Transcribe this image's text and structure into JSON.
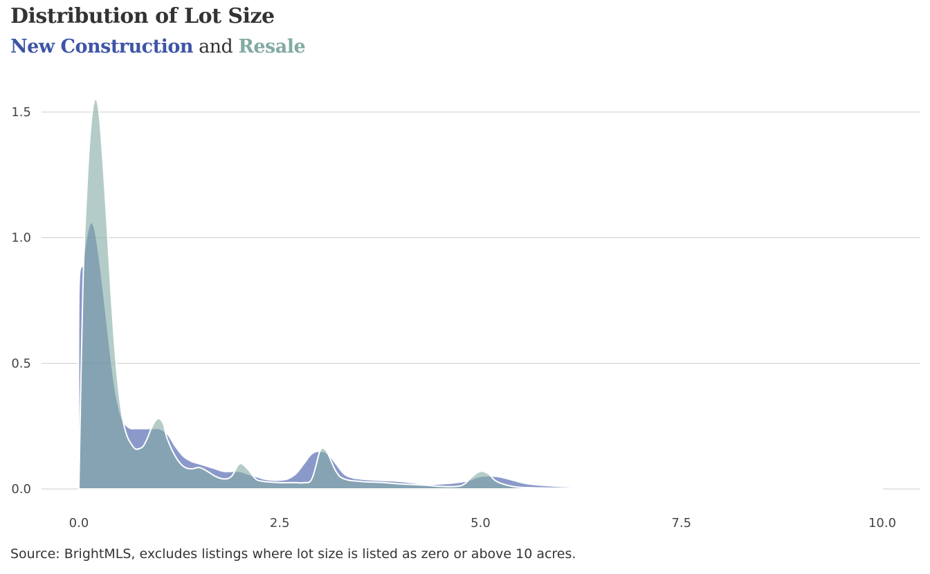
{
  "title": "Distribution of Lot Size",
  "subtitle": {
    "series1": "New Construction",
    "joiner": "and",
    "series2": "Resale"
  },
  "source": "Source: BrightMLS, excludes listings where lot size is listed as zero or above 10 acres.",
  "colors": {
    "new_construction": "#3e55a6",
    "resale": "#82aaa3",
    "grid": "#cccccc",
    "text": "#333333"
  },
  "chart_data": {
    "type": "area",
    "xlim": [
      0,
      10
    ],
    "ylim": [
      0,
      1.6
    ],
    "x_ticks": [
      "0.0",
      "2.5",
      "5.0",
      "7.5",
      "10.0"
    ],
    "y_ticks": [
      "0.0",
      "0.5",
      "1.0",
      "1.5"
    ],
    "grid": "horizontal",
    "series": [
      {
        "name": "New Construction",
        "x": [
          0.0,
          0.0,
          0.05,
          0.1,
          0.15,
          0.2,
          0.25,
          0.3,
          0.35,
          0.4,
          0.45,
          0.5,
          0.55,
          0.6,
          0.65,
          0.7,
          0.8,
          0.9,
          1.0,
          1.1,
          1.2,
          1.3,
          1.4,
          1.5,
          1.6,
          1.7,
          1.8,
          1.9,
          2.0,
          2.1,
          2.2,
          2.3,
          2.4,
          2.5,
          2.6,
          2.7,
          2.8,
          2.9,
          3.0,
          3.1,
          3.2,
          3.3,
          3.4,
          3.5,
          3.7,
          4.0,
          4.3,
          4.5,
          4.8,
          5.0,
          5.2,
          5.4,
          5.6,
          6.0,
          6.5,
          7.0,
          7.5,
          8.0,
          8.5,
          9.0,
          9.5,
          10.0
        ],
        "y": [
          0.0,
          0.77,
          0.9,
          1.01,
          1.06,
          1.03,
          0.93,
          0.8,
          0.66,
          0.52,
          0.4,
          0.32,
          0.27,
          0.25,
          0.24,
          0.24,
          0.24,
          0.24,
          0.24,
          0.22,
          0.17,
          0.13,
          0.11,
          0.1,
          0.09,
          0.08,
          0.07,
          0.07,
          0.07,
          0.06,
          0.05,
          0.04,
          0.035,
          0.035,
          0.04,
          0.06,
          0.1,
          0.14,
          0.15,
          0.14,
          0.1,
          0.06,
          0.045,
          0.04,
          0.035,
          0.03,
          0.02,
          0.02,
          0.03,
          0.05,
          0.05,
          0.035,
          0.02,
          0.01,
          0.005,
          0.004,
          0.002,
          0.001,
          0.0,
          0.0,
          0.0,
          0.0
        ]
      },
      {
        "name": "Resale",
        "x": [
          0.0,
          0.05,
          0.1,
          0.15,
          0.2,
          0.25,
          0.3,
          0.35,
          0.4,
          0.45,
          0.5,
          0.55,
          0.6,
          0.65,
          0.7,
          0.75,
          0.8,
          0.85,
          0.9,
          0.95,
          1.0,
          1.05,
          1.1,
          1.2,
          1.3,
          1.4,
          1.5,
          1.6,
          1.7,
          1.8,
          1.9,
          2.0,
          2.1,
          2.2,
          2.3,
          2.5,
          2.6,
          2.7,
          2.8,
          2.9,
          3.0,
          3.05,
          3.1,
          3.2,
          3.3,
          3.5,
          3.8,
          4.0,
          4.3,
          4.5,
          4.7,
          4.8,
          4.9,
          5.0,
          5.1,
          5.2,
          5.4,
          5.6,
          6.0,
          6.5,
          7.0,
          7.1,
          7.5,
          7.8,
          8.0,
          8.5,
          9.0,
          9.5,
          10.0
        ],
        "y": [
          0.0,
          0.8,
          1.2,
          1.45,
          1.55,
          1.5,
          1.3,
          1.05,
          0.78,
          0.55,
          0.38,
          0.27,
          0.21,
          0.18,
          0.16,
          0.16,
          0.17,
          0.2,
          0.24,
          0.27,
          0.28,
          0.26,
          0.2,
          0.13,
          0.09,
          0.08,
          0.085,
          0.07,
          0.05,
          0.04,
          0.05,
          0.1,
          0.08,
          0.04,
          0.03,
          0.025,
          0.025,
          0.025,
          0.025,
          0.04,
          0.15,
          0.16,
          0.14,
          0.07,
          0.04,
          0.03,
          0.025,
          0.02,
          0.015,
          0.01,
          0.01,
          0.02,
          0.05,
          0.07,
          0.06,
          0.03,
          0.01,
          0.005,
          0.003,
          0.003,
          0.005,
          0.003,
          0.002,
          0.003,
          0.002,
          0.0,
          0.0,
          0.0,
          0.0
        ]
      }
    ]
  }
}
